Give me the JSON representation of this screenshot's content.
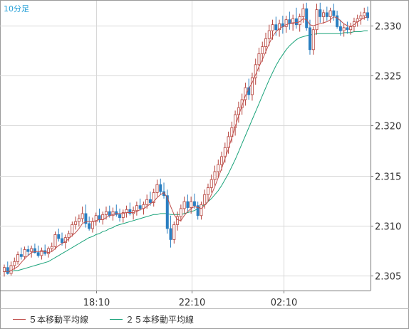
{
  "period_label": "10分足",
  "legend": [
    {
      "name": "５本移動平均線",
      "color": "#c0504d"
    },
    {
      "name": "２５本移動平均線",
      "color": "#1aa37a"
    }
  ],
  "colors": {
    "up_candle_fill": "#ffffff",
    "up_candle_stroke": "#b5413a",
    "down_candle_fill": "#2a7fc1",
    "down_candle_stroke": "#2a7fc1",
    "grid": "#d8d8d8",
    "axis": "#777777"
  },
  "chart_data": {
    "type": "candlestick",
    "x_tick_labels": [
      "18:10",
      "22:10",
      "02:10"
    ],
    "ylim": [
      2.3035,
      2.3325
    ],
    "y_ticks": [
      2.305,
      2.31,
      2.315,
      2.32,
      2.325,
      2.33
    ],
    "y_tick_labels": [
      "2.305",
      "2.310",
      "2.315",
      "2.320",
      "2.325",
      "2.330"
    ],
    "grid": true,
    "candles_ohlc": [
      [
        2.3054,
        2.3061,
        2.3049,
        2.3058
      ],
      [
        2.3058,
        2.3064,
        2.3051,
        2.3052
      ],
      [
        2.3052,
        2.3064,
        2.305,
        2.306
      ],
      [
        2.306,
        2.3068,
        2.3056,
        2.3064
      ],
      [
        2.3064,
        2.3074,
        2.3061,
        2.3071
      ],
      [
        2.3071,
        2.3078,
        2.3066,
        2.3069
      ],
      [
        2.3069,
        2.3079,
        2.3066,
        2.3076
      ],
      [
        2.3076,
        2.308,
        2.307,
        2.3074
      ],
      [
        2.3074,
        2.308,
        2.3068,
        2.3077
      ],
      [
        2.3077,
        2.3082,
        2.3072,
        2.3073
      ],
      [
        2.3073,
        2.308,
        2.3068,
        2.307
      ],
      [
        2.307,
        2.3078,
        2.3066,
        2.3075
      ],
      [
        2.3075,
        2.3081,
        2.307,
        2.3072
      ],
      [
        2.3072,
        2.3079,
        2.3068,
        2.3077
      ],
      [
        2.3077,
        2.3083,
        2.3074,
        2.3079
      ],
      [
        2.3079,
        2.3094,
        2.3076,
        2.3091
      ],
      [
        2.3091,
        2.3097,
        2.3084,
        2.3087
      ],
      [
        2.3087,
        2.3093,
        2.308,
        2.3083
      ],
      [
        2.3083,
        2.3091,
        2.3077,
        2.3088
      ],
      [
        2.3088,
        2.3095,
        2.3084,
        2.3092
      ],
      [
        2.3092,
        2.3104,
        2.3089,
        2.3101
      ],
      [
        2.3101,
        2.3109,
        2.3096,
        2.3104
      ],
      [
        2.3104,
        2.3111,
        2.3099,
        2.3107
      ],
      [
        2.3107,
        2.3119,
        2.3103,
        2.3112
      ],
      [
        2.3112,
        2.3121,
        2.3098,
        2.3102
      ],
      [
        2.3102,
        2.3109,
        2.3095,
        2.3097
      ],
      [
        2.3097,
        2.3108,
        2.3093,
        2.3104
      ],
      [
        2.3104,
        2.3113,
        2.31,
        2.311
      ],
      [
        2.311,
        2.3117,
        2.3103,
        2.3106
      ],
      [
        2.3106,
        2.3114,
        2.3101,
        2.3111
      ],
      [
        2.3111,
        2.3119,
        2.3106,
        2.3114
      ],
      [
        2.3114,
        2.312,
        2.3108,
        2.311
      ],
      [
        2.311,
        2.3118,
        2.3105,
        2.3114
      ],
      [
        2.3114,
        2.3121,
        2.3109,
        2.3111
      ],
      [
        2.3111,
        2.3117,
        2.3104,
        2.3108
      ],
      [
        2.3108,
        2.3116,
        2.3103,
        2.3113
      ],
      [
        2.3113,
        2.312,
        2.3108,
        2.3116
      ],
      [
        2.3116,
        2.3123,
        2.311,
        2.3112
      ],
      [
        2.3112,
        2.3119,
        2.3106,
        2.3115
      ],
      [
        2.3115,
        2.3124,
        2.311,
        2.312
      ],
      [
        2.312,
        2.3127,
        2.3115,
        2.3117
      ],
      [
        2.3117,
        2.3124,
        2.3111,
        2.3121
      ],
      [
        2.3121,
        2.3131,
        2.3117,
        2.3126
      ],
      [
        2.3126,
        2.3134,
        2.312,
        2.3123
      ],
      [
        2.3123,
        2.3137,
        2.3119,
        2.3133
      ],
      [
        2.3133,
        2.3146,
        2.3129,
        2.3141
      ],
      [
        2.3141,
        2.3147,
        2.3131,
        2.3134
      ],
      [
        2.3134,
        2.3143,
        2.3127,
        2.313
      ],
      [
        2.313,
        2.3136,
        2.3092,
        2.3097
      ],
      [
        2.3097,
        2.311,
        2.3078,
        2.3086
      ],
      [
        2.3086,
        2.3104,
        2.3082,
        2.3101
      ],
      [
        2.3101,
        2.3114,
        2.3095,
        2.3109
      ],
      [
        2.3109,
        2.3121,
        2.3104,
        2.3117
      ],
      [
        2.3117,
        2.3129,
        2.3112,
        2.3124
      ],
      [
        2.3124,
        2.3131,
        2.3114,
        2.3118
      ],
      [
        2.3118,
        2.3129,
        2.3112,
        2.3124
      ],
      [
        2.3124,
        2.3132,
        2.3117,
        2.312
      ],
      [
        2.312,
        2.3124,
        2.3106,
        2.311
      ],
      [
        2.311,
        2.3124,
        2.3106,
        2.3121
      ],
      [
        2.3121,
        2.3136,
        2.3117,
        2.3131
      ],
      [
        2.3131,
        2.3142,
        2.3124,
        2.3138
      ],
      [
        2.3138,
        2.3151,
        2.3133,
        2.3146
      ],
      [
        2.3146,
        2.316,
        2.314,
        2.3154
      ],
      [
        2.3154,
        2.3166,
        2.3148,
        2.3161
      ],
      [
        2.3161,
        2.3174,
        2.3155,
        2.3169
      ],
      [
        2.3169,
        2.3183,
        2.3163,
        2.3178
      ],
      [
        2.3178,
        2.3194,
        2.3172,
        2.3189
      ],
      [
        2.3189,
        2.3204,
        2.3183,
        2.3198
      ],
      [
        2.3198,
        2.3215,
        2.319,
        2.3211
      ],
      [
        2.3211,
        2.3224,
        2.3203,
        2.3218
      ],
      [
        2.3218,
        2.3232,
        2.3211,
        2.3226
      ],
      [
        2.3226,
        2.3243,
        2.322,
        2.3238
      ],
      [
        2.3238,
        2.3247,
        2.3226,
        2.3231
      ],
      [
        2.3231,
        2.3253,
        2.3225,
        2.3248
      ],
      [
        2.3248,
        2.3267,
        2.3241,
        2.3261
      ],
      [
        2.3261,
        2.3278,
        2.3254,
        2.3272
      ],
      [
        2.3272,
        2.3284,
        2.3264,
        2.3279
      ],
      [
        2.3279,
        2.3293,
        2.3272,
        2.3287
      ],
      [
        2.3287,
        2.3301,
        2.328,
        2.3295
      ],
      [
        2.3295,
        2.3306,
        2.3286,
        2.3301
      ],
      [
        2.3301,
        2.3309,
        2.329,
        2.3296
      ],
      [
        2.3296,
        2.3306,
        2.3289,
        2.3302
      ],
      [
        2.3302,
        2.331,
        2.3292,
        2.3299
      ],
      [
        2.3299,
        2.331,
        2.3293,
        2.3306
      ],
      [
        2.3306,
        2.3314,
        2.3296,
        2.3302
      ],
      [
        2.3302,
        2.3311,
        2.3295,
        2.3307
      ],
      [
        2.3307,
        2.3318,
        2.3297,
        2.3301
      ],
      [
        2.3301,
        2.3312,
        2.3294,
        2.3309
      ],
      [
        2.3309,
        2.3322,
        2.3303,
        2.3317
      ],
      [
        2.3317,
        2.3323,
        2.3295,
        2.3298
      ],
      [
        2.3298,
        2.3306,
        2.3271,
        2.3276
      ],
      [
        2.3276,
        2.3299,
        2.3271,
        2.3296
      ],
      [
        2.3296,
        2.3322,
        2.3291,
        2.3316
      ],
      [
        2.3316,
        2.3323,
        2.3303,
        2.3309
      ],
      [
        2.3309,
        2.3316,
        2.3302,
        2.3313
      ],
      [
        2.3313,
        2.3319,
        2.3305,
        2.3309
      ],
      [
        2.3309,
        2.3318,
        2.3303,
        2.3315
      ],
      [
        2.3315,
        2.3322,
        2.3305,
        2.331
      ],
      [
        2.331,
        2.3315,
        2.3297,
        2.3299
      ],
      [
        2.3299,
        2.3306,
        2.329,
        2.3295
      ],
      [
        2.3295,
        2.3302,
        2.3289,
        2.3298
      ],
      [
        2.3298,
        2.3304,
        2.3292,
        2.3296
      ],
      [
        2.3296,
        2.3303,
        2.3291,
        2.3299
      ],
      [
        2.3299,
        2.3308,
        2.3294,
        2.3304
      ],
      [
        2.3304,
        2.3311,
        2.3299,
        2.3307
      ],
      [
        2.3307,
        2.3314,
        2.3301,
        2.331
      ],
      [
        2.331,
        2.3318,
        2.3306,
        2.3313
      ],
      [
        2.3313,
        2.3319,
        2.3305,
        2.3308
      ]
    ],
    "sma5": [
      2.3054,
      2.3054,
      2.3055,
      2.3057,
      2.3059,
      2.3063,
      2.3067,
      2.307,
      2.3073,
      2.3074,
      2.3074,
      2.3074,
      2.3074,
      2.3073,
      2.3074,
      2.3077,
      2.308,
      2.3082,
      2.3084,
      2.3087,
      2.309,
      2.3093,
      2.3097,
      2.3102,
      2.3104,
      2.3104,
      2.3104,
      2.3105,
      2.3106,
      2.3106,
      2.3108,
      2.311,
      2.3111,
      2.3112,
      2.3112,
      2.3112,
      2.3113,
      2.3113,
      2.3113,
      2.3114,
      2.3116,
      2.3117,
      2.3119,
      2.3122,
      2.3124,
      2.3128,
      2.3131,
      2.3133,
      2.3128,
      2.3119,
      2.3111,
      2.3106,
      2.3105,
      2.311,
      2.3114,
      2.3117,
      2.3119,
      2.3118,
      2.3117,
      2.312,
      2.3124,
      2.3131,
      2.3139,
      2.3148,
      2.3157,
      2.3167,
      2.3177,
      2.3188,
      2.3199,
      2.321,
      2.322,
      2.323,
      2.3237,
      2.3243,
      2.3251,
      2.3259,
      2.3266,
      2.3274,
      2.3282,
      2.3289,
      2.3294,
      2.3297,
      2.3299,
      2.3301,
      2.3302,
      2.3303,
      2.3303,
      2.3304,
      2.3307,
      2.3306,
      2.3301,
      2.33,
      2.3301,
      2.3302,
      2.3303,
      2.3304,
      2.3306,
      2.3309,
      2.3308,
      2.3305,
      2.3302,
      2.33,
      2.3299,
      2.3301,
      2.3304,
      2.3306,
      2.3308,
      2.3309
    ],
    "sma25": [
      2.3054,
      2.3054,
      2.3054,
      2.3055,
      2.3055,
      2.3056,
      2.3057,
      2.3058,
      2.3059,
      2.306,
      2.3061,
      2.3062,
      2.3063,
      2.3064,
      2.3066,
      2.3068,
      2.307,
      2.3072,
      2.3074,
      2.3076,
      2.3078,
      2.308,
      2.3082,
      2.3084,
      2.3086,
      2.3088,
      2.3089,
      2.3091,
      2.3092,
      2.3094,
      2.3095,
      2.3097,
      2.3098,
      2.31,
      2.3101,
      2.3102,
      2.3103,
      2.3104,
      2.3105,
      2.3106,
      2.3107,
      2.3108,
      2.3109,
      2.311,
      2.3111,
      2.3111,
      2.3112,
      2.3112,
      2.3112,
      2.3111,
      2.3111,
      2.3111,
      2.3111,
      2.3112,
      2.3113,
      2.3114,
      2.3115,
      2.3117,
      2.3119,
      2.3121,
      2.3124,
      2.3127,
      2.3131,
      2.3135,
      2.314,
      2.3146,
      2.3152,
      2.3159,
      2.3166,
      2.3174,
      2.3182,
      2.319,
      2.3198,
      2.3206,
      2.3214,
      2.3222,
      2.323,
      2.3238,
      2.3246,
      2.3253,
      2.326,
      2.3266,
      2.3271,
      2.3276,
      2.328,
      2.3283,
      2.3286,
      2.3288,
      2.3289,
      2.329,
      2.3291,
      2.3291,
      2.3292,
      2.3292,
      2.3292,
      2.3292,
      2.3292,
      2.3292,
      2.3292,
      2.3292,
      2.3293,
      2.3293,
      2.3293,
      2.3294,
      2.3294,
      2.3294,
      2.3295,
      2.3295
    ]
  }
}
